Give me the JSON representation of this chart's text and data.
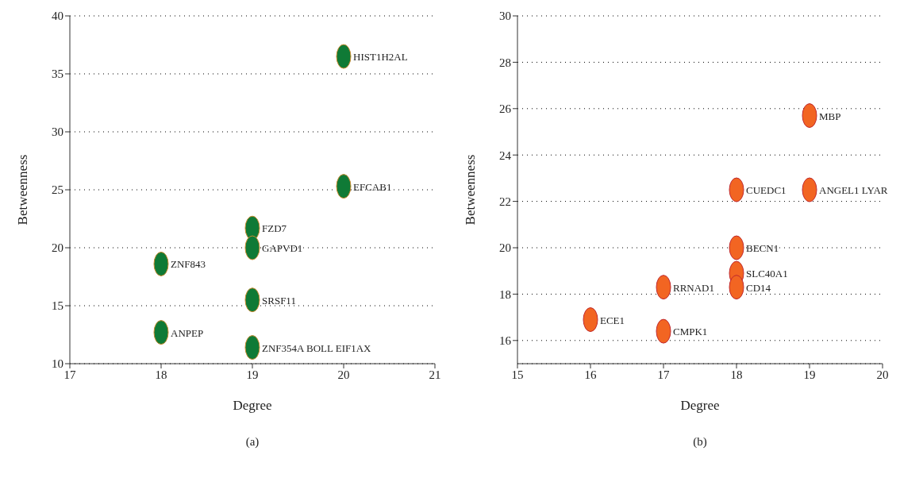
{
  "chart_data": [
    {
      "type": "scatter",
      "xlabel": "Degree",
      "ylabel": "Betweenness",
      "x": [
        20,
        20,
        19,
        19,
        18,
        19,
        18,
        19
      ],
      "values": [
        36.5,
        25.3,
        21.7,
        20.0,
        18.6,
        15.5,
        12.7,
        11.4
      ],
      "color": "#0f7a36",
      "marker": "circle",
      "xlim": [
        17,
        21
      ],
      "xticks": [
        17,
        18,
        19,
        20,
        21
      ],
      "ylim": [
        10,
        40
      ],
      "yticks": [
        10,
        15,
        20,
        25,
        30,
        35,
        40
      ],
      "grid": "y",
      "annotations": [
        {
          "text": "HIST1H2AL",
          "x": 20,
          "y": 36.5
        },
        {
          "text": "EFCAB1",
          "x": 20,
          "y": 25.3
        },
        {
          "text": "FZD7",
          "x": 19,
          "y": 21.7
        },
        {
          "text": "GAPVD1",
          "x": 19,
          "y": 20.0
        },
        {
          "text": "ZNF843",
          "x": 18,
          "y": 18.6
        },
        {
          "text": "SRSF11",
          "x": 19,
          "y": 15.5
        },
        {
          "text": "ANPEP",
          "x": 18,
          "y": 12.7
        },
        {
          "text": "ZNF354A BOLL EIF1AX",
          "x": 19,
          "y": 11.4
        },
        "(a)"
      ]
    },
    {
      "type": "scatter",
      "xlabel": "Degree",
      "ylabel": "Betweenness",
      "x": [
        19,
        18,
        19,
        18,
        18,
        18,
        17,
        16,
        17
      ],
      "values": [
        25.7,
        22.5,
        22.5,
        20.0,
        18.9,
        18.3,
        18.3,
        16.9,
        16.4
      ],
      "color": "#f26522",
      "marker": "circle",
      "xlim": [
        15,
        20
      ],
      "xticks": [
        15,
        16,
        17,
        18,
        19,
        20
      ],
      "ylim": [
        15,
        30
      ],
      "yticks": [
        16,
        18,
        20,
        22,
        24,
        26,
        28,
        30
      ],
      "grid": "y",
      "annotations": [
        {
          "text": "MBP",
          "x": 19,
          "y": 25.7
        },
        {
          "text": "CUEDC1",
          "x": 18,
          "y": 22.5
        },
        {
          "text": "ANGEL1 LYAR",
          "x": 19,
          "y": 22.5
        },
        {
          "text": "BECN1",
          "x": 18,
          "y": 20.0
        },
        {
          "text": "SLC40A1",
          "x": 18,
          "y": 18.9
        },
        {
          "text": "CD14",
          "x": 18,
          "y": 18.3
        },
        {
          "text": "RRNAD1",
          "x": 17,
          "y": 18.3
        },
        {
          "text": "ECE1",
          "x": 16,
          "y": 16.9
        },
        {
          "text": "CMPK1",
          "x": 17,
          "y": 16.4
        },
        "(b)"
      ]
    }
  ]
}
